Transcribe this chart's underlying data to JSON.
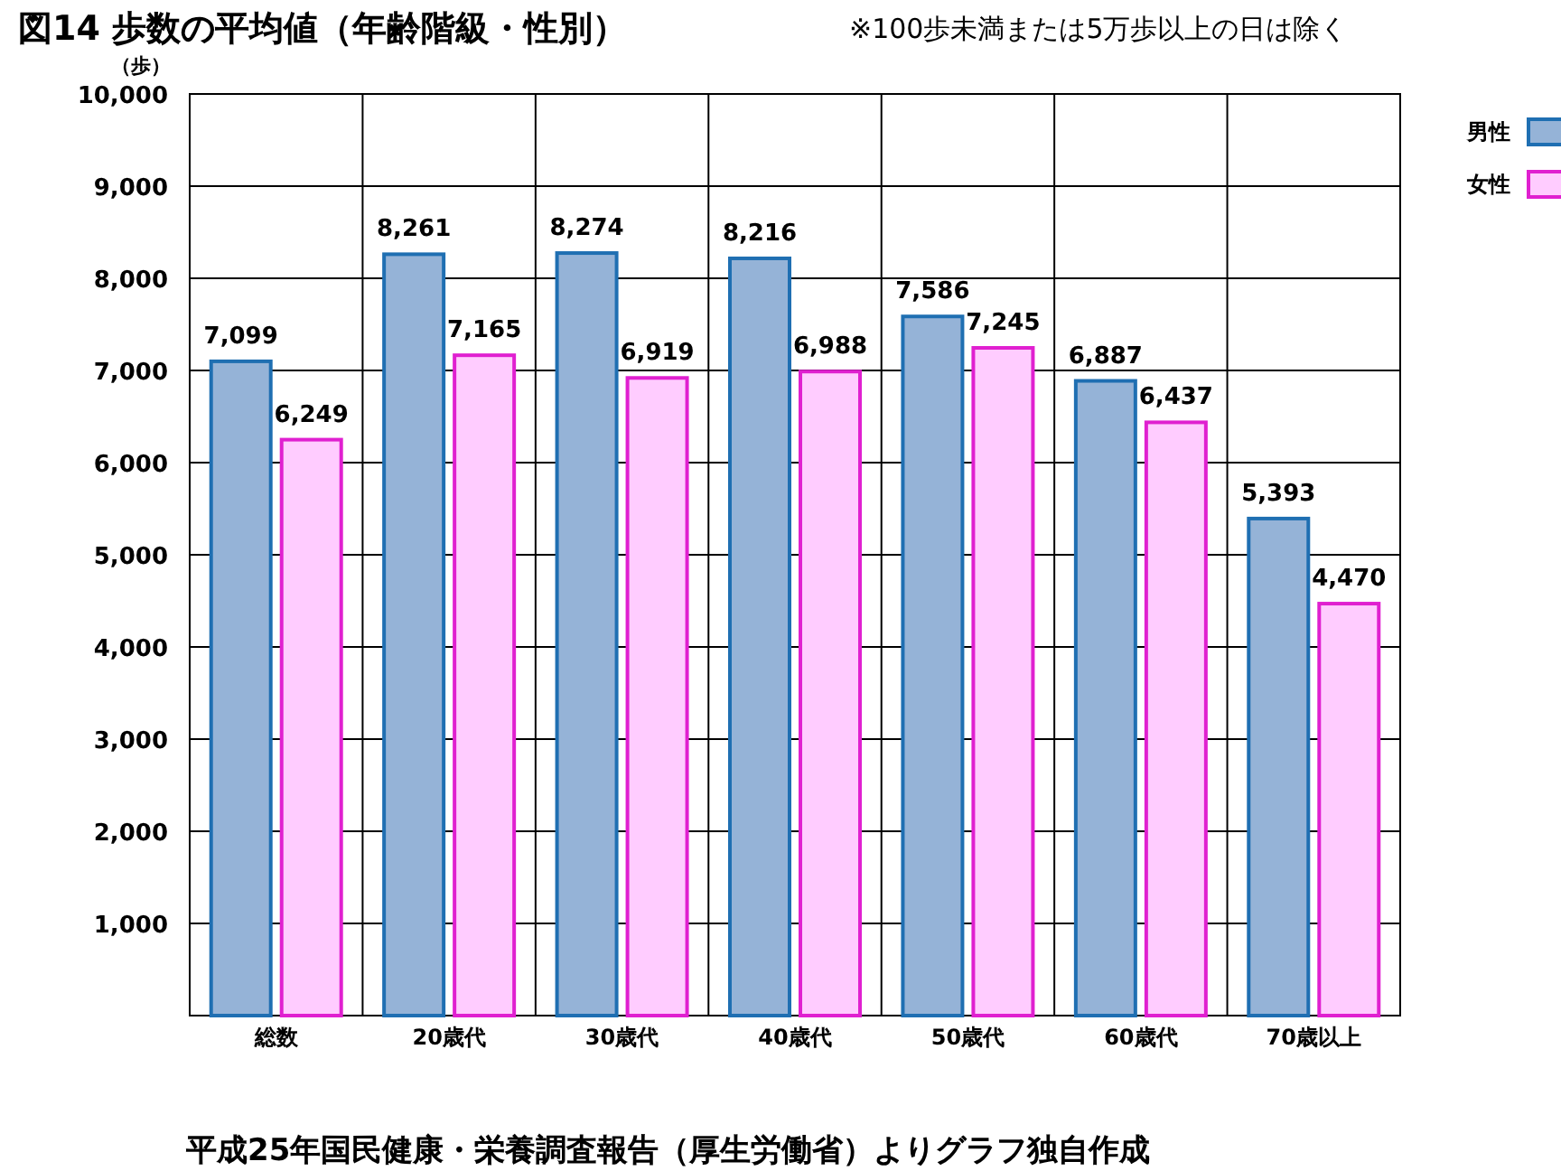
{
  "chart_data": {
    "type": "bar",
    "title": "図14 歩数の平均値（年齢階級・性別）",
    "subtitle": "※100歩未満または5万歩以上の日は除く",
    "ylabel": "（歩）",
    "categories": [
      "総数",
      "20歳代",
      "30歳代",
      "40歳代",
      "50歳代",
      "60歳代",
      "70歳以上"
    ],
    "series": [
      {
        "name": "男性",
        "color": "#95b3d7",
        "values": [
          7099,
          8261,
          8274,
          8216,
          7586,
          6887,
          5393
        ],
        "value_labels": [
          "7,099",
          "8,261",
          "8,274",
          "8,216",
          "7,586",
          "6,887",
          "5,393"
        ]
      },
      {
        "name": "女性",
        "color": "#ffccff",
        "values": [
          6249,
          7165,
          6919,
          6988,
          7245,
          6437,
          4470
        ],
        "value_labels": [
          "6,249",
          "7,165",
          "6,919",
          "6,988",
          "7,245",
          "6,437",
          "4,470"
        ]
      }
    ],
    "ylim": [
      0,
      10000
    ],
    "yticks": [
      {
        "value": 1000,
        "label": "1,000"
      },
      {
        "value": 2000,
        "label": "2,000"
      },
      {
        "value": 3000,
        "label": "3,000"
      },
      {
        "value": 4000,
        "label": "4,000"
      },
      {
        "value": 5000,
        "label": "5,000"
      },
      {
        "value": 6000,
        "label": "6,000"
      },
      {
        "value": 7000,
        "label": "7,000"
      },
      {
        "value": 8000,
        "label": "8,000"
      },
      {
        "value": 9000,
        "label": "9,000"
      },
      {
        "value": 10000,
        "label": "10,000"
      }
    ],
    "grid": true,
    "legend": "top right",
    "annotations": [
      "平成25年国民健康・栄養調査報告（厚生労働省）よりグラフ独自作成"
    ]
  }
}
